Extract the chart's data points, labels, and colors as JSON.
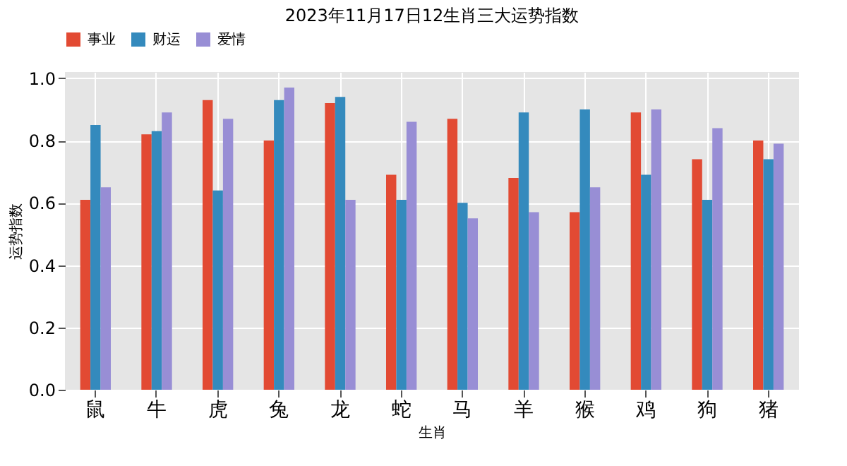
{
  "chart_data": {
    "type": "bar",
    "title": "2023年11月17日12生肖三大运势指数",
    "xlabel": "生肖",
    "ylabel": "运势指数",
    "categories": [
      "鼠",
      "牛",
      "虎",
      "兔",
      "龙",
      "蛇",
      "马",
      "羊",
      "猴",
      "鸡",
      "狗",
      "猪"
    ],
    "series": [
      {
        "name": "事业",
        "color": "#e24a33",
        "values": [
          0.61,
          0.82,
          0.93,
          0.8,
          0.92,
          0.69,
          0.87,
          0.68,
          0.57,
          0.89,
          0.74,
          0.8
        ]
      },
      {
        "name": "财运",
        "color": "#348abd",
        "values": [
          0.85,
          0.83,
          0.64,
          0.93,
          0.94,
          0.61,
          0.6,
          0.89,
          0.9,
          0.69,
          0.61,
          0.74
        ]
      },
      {
        "name": "爱情",
        "color": "#988ed5",
        "values": [
          0.65,
          0.89,
          0.87,
          0.97,
          0.61,
          0.86,
          0.55,
          0.57,
          0.65,
          0.9,
          0.84,
          0.79
        ]
      }
    ],
    "ylim": [
      0,
      1.02
    ],
    "yticks": [
      {
        "value": 0,
        "label": "0.0"
      },
      {
        "value": 0.2,
        "label": "0.2"
      },
      {
        "value": 0.4,
        "label": "0.4"
      },
      {
        "value": 0.6,
        "label": "0.6"
      },
      {
        "value": 0.8,
        "label": "0.8"
      },
      {
        "value": 1,
        "label": "1.0"
      }
    ],
    "grid": true,
    "legend": "top"
  }
}
